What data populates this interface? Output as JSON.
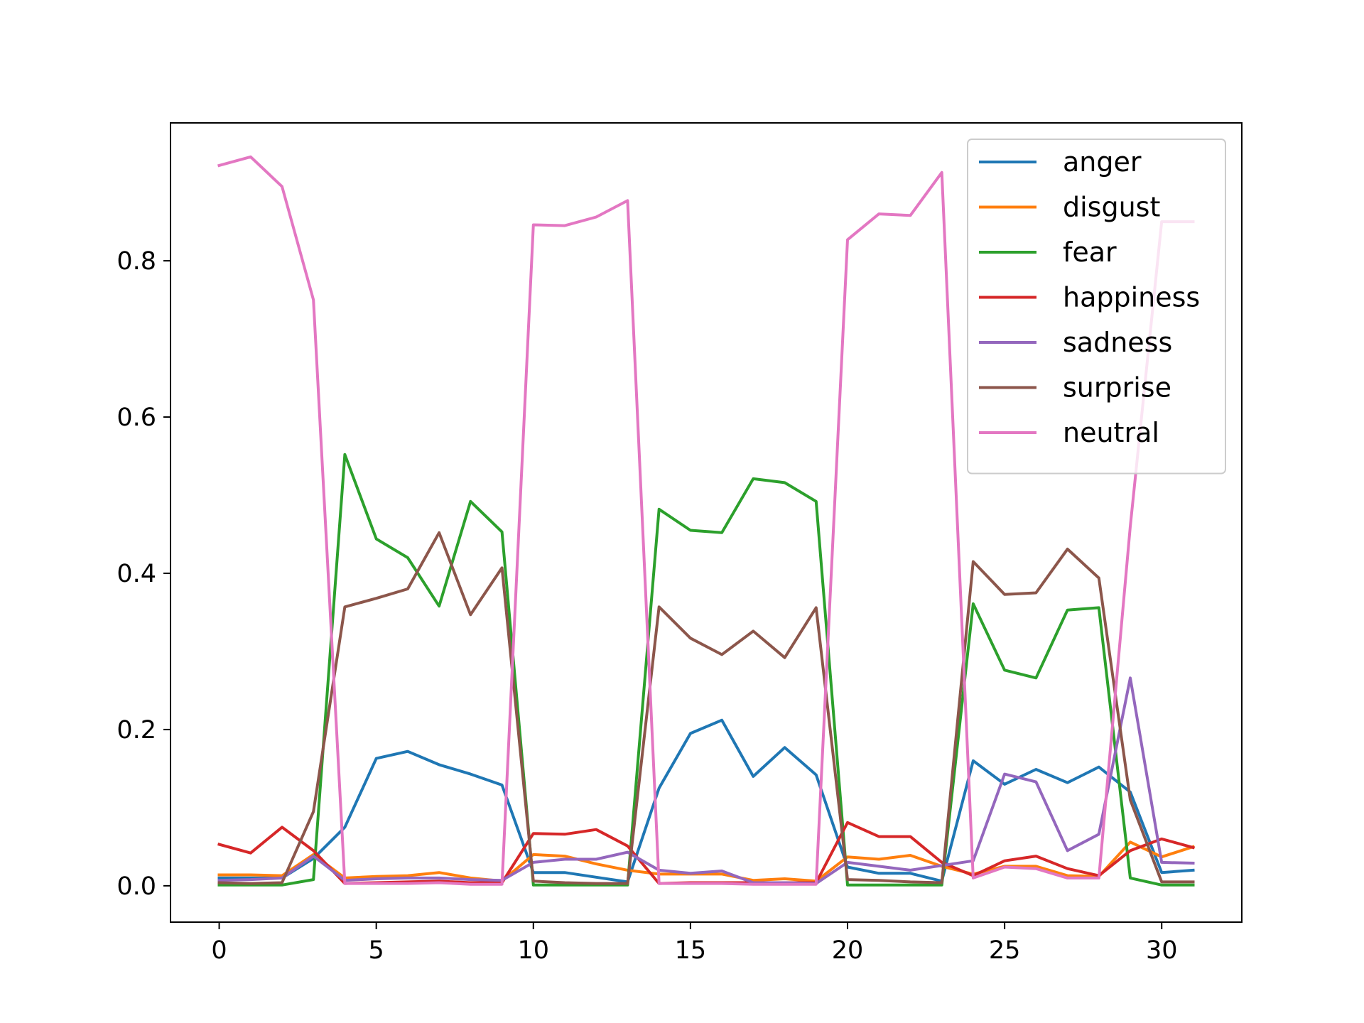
{
  "chart_data": {
    "type": "line",
    "title": "",
    "xlabel": "",
    "ylabel": "",
    "xlim": [
      -1.55,
      32.55
    ],
    "ylim": [
      -0.0465,
      0.9765
    ],
    "x_ticks": [
      0,
      5,
      10,
      15,
      20,
      25,
      30
    ],
    "y_ticks": [
      0.0,
      0.2,
      0.4,
      0.6,
      0.8
    ],
    "x_tick_labels": [
      "0",
      "5",
      "10",
      "15",
      "20",
      "25",
      "30"
    ],
    "y_tick_labels": [
      "0.0",
      "0.2",
      "0.4",
      "0.6",
      "0.8"
    ],
    "grid": false,
    "legend_position": "top-right",
    "x": [
      0,
      1,
      2,
      3,
      4,
      5,
      6,
      7,
      8,
      9,
      10,
      11,
      12,
      13,
      14,
      15,
      16,
      17,
      18,
      19,
      20,
      21,
      22,
      23,
      24,
      25,
      26,
      27,
      28,
      29,
      30,
      31
    ],
    "series": [
      {
        "name": "anger",
        "color": "#1f77b4",
        "values": [
          0.01,
          0.01,
          0.01,
          0.035,
          0.075,
          0.163,
          0.172,
          0.155,
          0.143,
          0.129,
          0.017,
          0.017,
          0.011,
          0.005,
          0.125,
          0.195,
          0.212,
          0.14,
          0.177,
          0.142,
          0.024,
          0.016,
          0.016,
          0.006,
          0.16,
          0.13,
          0.149,
          0.132,
          0.152,
          0.12,
          0.017,
          0.02
        ]
      },
      {
        "name": "disgust",
        "color": "#ff7f0e",
        "values": [
          0.014,
          0.014,
          0.013,
          0.04,
          0.01,
          0.012,
          0.013,
          0.017,
          0.01,
          0.006,
          0.04,
          0.038,
          0.028,
          0.02,
          0.015,
          0.015,
          0.015,
          0.007,
          0.009,
          0.006,
          0.037,
          0.034,
          0.039,
          0.025,
          0.015,
          0.025,
          0.025,
          0.013,
          0.012,
          0.056,
          0.037,
          0.05
        ]
      },
      {
        "name": "fear",
        "color": "#2ca02c",
        "values": [
          0.001,
          0.001,
          0.001,
          0.008,
          0.552,
          0.444,
          0.42,
          0.358,
          0.492,
          0.453,
          0.001,
          0.001,
          0.001,
          0.001,
          0.482,
          0.455,
          0.452,
          0.521,
          0.516,
          0.492,
          0.001,
          0.001,
          0.001,
          0.001,
          0.361,
          0.276,
          0.266,
          0.353,
          0.356,
          0.01,
          0.001,
          0.001
        ]
      },
      {
        "name": "happiness",
        "color": "#d62728",
        "values": [
          0.053,
          0.042,
          0.075,
          0.045,
          0.003,
          0.004,
          0.005,
          0.006,
          0.004,
          0.004,
          0.067,
          0.066,
          0.072,
          0.051,
          0.003,
          0.004,
          0.004,
          0.004,
          0.004,
          0.004,
          0.081,
          0.063,
          0.063,
          0.03,
          0.013,
          0.032,
          0.038,
          0.022,
          0.013,
          0.045,
          0.06,
          0.049
        ]
      },
      {
        "name": "sadness",
        "color": "#9467bd",
        "values": [
          0.007,
          0.008,
          0.01,
          0.038,
          0.007,
          0.009,
          0.01,
          0.01,
          0.008,
          0.007,
          0.03,
          0.034,
          0.034,
          0.043,
          0.02,
          0.016,
          0.019,
          0.004,
          0.004,
          0.003,
          0.03,
          0.025,
          0.02,
          0.026,
          0.032,
          0.143,
          0.133,
          0.045,
          0.066,
          0.266,
          0.03,
          0.029
        ]
      },
      {
        "name": "surprise",
        "color": "#8c564b",
        "values": [
          0.004,
          0.003,
          0.004,
          0.095,
          0.357,
          0.368,
          0.38,
          0.452,
          0.347,
          0.407,
          0.006,
          0.004,
          0.003,
          0.003,
          0.357,
          0.317,
          0.296,
          0.326,
          0.292,
          0.356,
          0.008,
          0.007,
          0.005,
          0.004,
          0.415,
          0.373,
          0.375,
          0.431,
          0.394,
          0.11,
          0.005,
          0.005
        ]
      },
      {
        "name": "neutral",
        "color": "#e377c2",
        "values": [
          0.922,
          0.933,
          0.895,
          0.75,
          0.003,
          0.003,
          0.003,
          0.004,
          0.002,
          0.002,
          0.846,
          0.845,
          0.856,
          0.877,
          0.003,
          0.003,
          0.003,
          0.002,
          0.002,
          0.002,
          0.827,
          0.86,
          0.858,
          0.913,
          0.01,
          0.024,
          0.022,
          0.01,
          0.01,
          0.46,
          0.85,
          0.85
        ]
      }
    ]
  }
}
